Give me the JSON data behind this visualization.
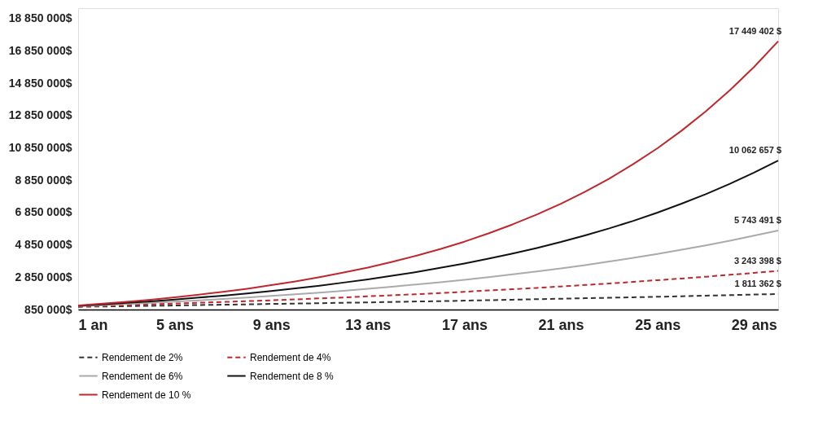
{
  "chart_data": {
    "type": "line",
    "x": [
      1,
      2,
      3,
      4,
      5,
      6,
      7,
      8,
      9,
      10,
      11,
      12,
      13,
      14,
      15,
      16,
      17,
      18,
      19,
      20,
      21,
      22,
      23,
      24,
      25,
      26,
      27,
      28,
      29,
      30
    ],
    "xlim": [
      1,
      30
    ],
    "xticks": [
      {
        "value": 1,
        "label": "1 an"
      },
      {
        "value": 5,
        "label": "5 ans"
      },
      {
        "value": 9,
        "label": "9 ans"
      },
      {
        "value": 13,
        "label": "13 ans"
      },
      {
        "value": 17,
        "label": "17 ans"
      },
      {
        "value": 21,
        "label": "21 ans"
      },
      {
        "value": 25,
        "label": "25 ans"
      },
      {
        "value": 29,
        "label": "29 ans"
      }
    ],
    "ylim": [
      850000,
      19500000
    ],
    "yticks": [
      {
        "value": 850000,
        "label": "850 000$"
      },
      {
        "value": 2850000,
        "label": "2 850 000$"
      },
      {
        "value": 4850000,
        "label": "4 850 000$"
      },
      {
        "value": 6850000,
        "label": "6 850 000$"
      },
      {
        "value": 8850000,
        "label": "8 850 000$"
      },
      {
        "value": 10850000,
        "label": "10 850 000$"
      },
      {
        "value": 12850000,
        "label": "12 850 000$"
      },
      {
        "value": 14850000,
        "label": "14 850 000$"
      },
      {
        "value": 16850000,
        "label": "16 850 000$"
      },
      {
        "value": 18850000,
        "label": "18 850 000$"
      }
    ],
    "grid": false,
    "legend": "bottom left",
    "marker": "none",
    "series": [
      {
        "name": "Rendement de 2%",
        "color": "#333333",
        "line_style": "dashed",
        "values": [
          1020000,
          1040000,
          1060000,
          1080000,
          1100000,
          1130000,
          1150000,
          1170000,
          1200000,
          1220000,
          1240000,
          1270000,
          1290000,
          1320000,
          1350000,
          1370000,
          1400000,
          1430000,
          1460000,
          1490000,
          1520000,
          1550000,
          1580000,
          1610000,
          1640000,
          1670000,
          1710000,
          1740000,
          1780000,
          1811362
        ],
        "value_labels": [
          null,
          null,
          null,
          null,
          null,
          null,
          null,
          null,
          null,
          null,
          null,
          null,
          null,
          null,
          null,
          null,
          null,
          null,
          null,
          null,
          null,
          null,
          null,
          null,
          null,
          null,
          null,
          null,
          null,
          "1 811 362 $"
        ]
      },
      {
        "name": "Rendement de 4%",
        "color": "#c0272d",
        "line_style": "dashed",
        "values": [
          1040000,
          1080000,
          1120000,
          1170000,
          1220000,
          1270000,
          1320000,
          1370000,
          1420000,
          1480000,
          1540000,
          1600000,
          1670000,
          1730000,
          1800000,
          1870000,
          1950000,
          2030000,
          2110000,
          2190000,
          2280000,
          2370000,
          2460000,
          2560000,
          2670000,
          2770000,
          2880000,
          3000000,
          3120000,
          3243398
        ],
        "value_labels": [
          null,
          null,
          null,
          null,
          null,
          null,
          null,
          null,
          null,
          null,
          null,
          null,
          null,
          null,
          null,
          null,
          null,
          null,
          null,
          null,
          null,
          null,
          null,
          null,
          null,
          null,
          null,
          null,
          null,
          "3 243 398 $"
        ]
      },
      {
        "name": "Rendement de 6%",
        "color": "#aaaaaa",
        "line_style": "solid",
        "values": [
          1060000,
          1120000,
          1190000,
          1260000,
          1340000,
          1420000,
          1500000,
          1590000,
          1690000,
          1790000,
          1900000,
          2010000,
          2130000,
          2260000,
          2400000,
          2540000,
          2690000,
          2850000,
          3030000,
          3210000,
          3400000,
          3600000,
          3820000,
          4050000,
          4290000,
          4550000,
          4820000,
          5110000,
          5420000,
          5743491
        ],
        "value_labels": [
          null,
          null,
          null,
          null,
          null,
          null,
          null,
          null,
          null,
          null,
          null,
          null,
          null,
          null,
          null,
          null,
          null,
          null,
          null,
          null,
          null,
          null,
          null,
          null,
          null,
          null,
          null,
          null,
          null,
          "5 743 491 $"
        ]
      },
      {
        "name": "Rendement de 8 %",
        "color": "#111111",
        "line_style": "solid",
        "values": [
          1080000,
          1170000,
          1260000,
          1360000,
          1470000,
          1590000,
          1710000,
          1850000,
          2000000,
          2160000,
          2330000,
          2520000,
          2720000,
          2940000,
          3170000,
          3430000,
          3700000,
          4000000,
          4320000,
          4660000,
          5030000,
          5440000,
          5870000,
          6340000,
          6850000,
          7400000,
          7990000,
          8630000,
          9320000,
          10062657
        ],
        "value_labels": [
          null,
          null,
          null,
          null,
          null,
          null,
          null,
          null,
          null,
          null,
          null,
          null,
          null,
          null,
          null,
          null,
          null,
          null,
          null,
          null,
          null,
          null,
          null,
          null,
          null,
          null,
          null,
          null,
          null,
          "10 062 657 $"
        ]
      },
      {
        "name": "Rendement de 10 %",
        "color": "#c0272d",
        "line_style": "solid",
        "values": [
          1100000,
          1210000,
          1330000,
          1460000,
          1610000,
          1770000,
          1950000,
          2140000,
          2360000,
          2590000,
          2850000,
          3140000,
          3450000,
          3800000,
          4180000,
          4590000,
          5050000,
          5560000,
          6120000,
          6730000,
          7400000,
          8140000,
          8950000,
          9850000,
          10830000,
          11920000,
          13110000,
          14420000,
          15860000,
          17449402
        ],
        "value_labels": [
          null,
          null,
          null,
          null,
          null,
          null,
          null,
          null,
          null,
          null,
          null,
          null,
          null,
          null,
          null,
          null,
          null,
          null,
          null,
          null,
          null,
          null,
          null,
          null,
          null,
          null,
          null,
          null,
          null,
          "17 449 402 $"
        ]
      }
    ]
  }
}
